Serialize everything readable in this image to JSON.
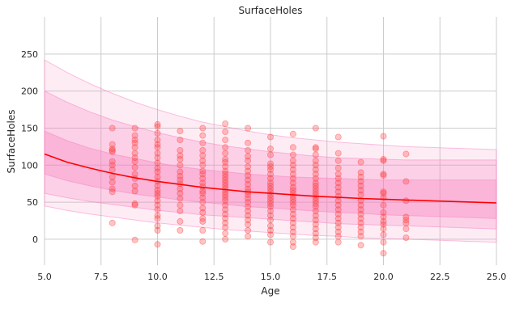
{
  "chart_data": {
    "type": "scatter",
    "title": "SurfaceHoles",
    "xlabel": "Age",
    "ylabel": "SurfaceHoles",
    "xlim": [
      5,
      25
    ],
    "ylim": [
      -35,
      300
    ],
    "x_ticks": [
      "5.0",
      "7.5",
      "10.0",
      "12.5",
      "15.0",
      "17.5",
      "20.0",
      "22.5",
      "25.0"
    ],
    "x_tick_values": [
      5,
      7.5,
      10,
      12.5,
      15,
      17.5,
      20,
      22.5,
      25
    ],
    "y_ticks": [
      "0",
      "50",
      "100",
      "150",
      "200",
      "250"
    ],
    "y_tick_values": [
      0,
      50,
      100,
      150,
      200,
      250
    ],
    "grid": true,
    "colors": {
      "fit_line": "#ff0000",
      "points": "#ff3b3b",
      "band": "#f781bf",
      "grid": "#cccccc",
      "background": "#ffffff"
    },
    "fit_line": {
      "x": [
        5,
        6,
        7,
        8,
        9,
        10,
        11,
        12,
        13,
        14,
        15,
        16,
        17,
        18,
        19,
        20,
        21,
        22,
        23,
        24,
        25
      ],
      "y": [
        115,
        104,
        96,
        89,
        83,
        78,
        74,
        70,
        67,
        64,
        62,
        60,
        58,
        56.5,
        55,
        54,
        53,
        52,
        51,
        50,
        49
      ]
    },
    "bands": [
      {
        "upper": [
          146,
          133,
          123,
          115,
          109,
          103,
          98,
          94,
          91,
          88,
          86,
          84,
          83,
          82,
          81,
          80,
          80,
          80,
          80,
          80,
          80
        ],
        "lower": [
          88,
          79,
          72,
          66,
          61,
          57,
          53,
          50,
          47,
          44,
          42,
          40,
          38,
          36,
          35,
          33,
          32,
          31,
          30,
          29,
          28
        ]
      },
      {
        "upper": [
          200,
          185,
          172,
          161,
          152,
          144,
          137,
          131,
          126,
          122,
          118,
          115,
          112,
          110,
          109,
          108,
          107,
          107,
          107,
          107,
          107
        ],
        "lower": [
          62,
          56,
          51,
          47,
          43,
          39,
          36,
          33,
          31,
          29,
          27,
          25,
          23,
          21,
          20,
          19,
          18,
          17,
          16,
          15,
          14
        ]
      },
      {
        "upper": [
          242,
          225,
          210,
          197,
          185,
          175,
          166,
          158,
          152,
          146,
          141,
          137,
          134,
          131,
          129,
          127,
          125,
          124,
          123,
          122,
          121
        ],
        "lower": [
          45,
          39,
          34,
          30,
          26,
          22,
          19,
          16,
          13,
          11,
          9,
          7,
          5,
          4,
          2,
          1,
          0,
          -1,
          -2,
          -3,
          -4
        ]
      }
    ],
    "points": [
      {
        "x": 8,
        "y": 22
      },
      {
        "x": 8,
        "y": 64
      },
      {
        "x": 8,
        "y": 68
      },
      {
        "x": 8,
        "y": 77
      },
      {
        "x": 8,
        "y": 84
      },
      {
        "x": 8,
        "y": 94
      },
      {
        "x": 8,
        "y": 100
      },
      {
        "x": 8,
        "y": 105
      },
      {
        "x": 8,
        "y": 118
      },
      {
        "x": 8,
        "y": 120
      },
      {
        "x": 8,
        "y": 122
      },
      {
        "x": 8,
        "y": 128
      },
      {
        "x": 8,
        "y": 150
      },
      {
        "x": 9,
        "y": -1
      },
      {
        "x": 9,
        "y": 46
      },
      {
        "x": 9,
        "y": 48
      },
      {
        "x": 9,
        "y": 65
      },
      {
        "x": 9,
        "y": 72
      },
      {
        "x": 9,
        "y": 82
      },
      {
        "x": 9,
        "y": 88
      },
      {
        "x": 9,
        "y": 97
      },
      {
        "x": 9,
        "y": 105
      },
      {
        "x": 9,
        "y": 110
      },
      {
        "x": 9,
        "y": 116
      },
      {
        "x": 9,
        "y": 124
      },
      {
        "x": 9,
        "y": 130
      },
      {
        "x": 9,
        "y": 134
      },
      {
        "x": 9,
        "y": 140
      },
      {
        "x": 9,
        "y": 150
      },
      {
        "x": 10,
        "y": -7
      },
      {
        "x": 10,
        "y": 12
      },
      {
        "x": 10,
        "y": 18
      },
      {
        "x": 10,
        "y": 28
      },
      {
        "x": 10,
        "y": 32
      },
      {
        "x": 10,
        "y": 40
      },
      {
        "x": 10,
        "y": 46
      },
      {
        "x": 10,
        "y": 52
      },
      {
        "x": 10,
        "y": 58
      },
      {
        "x": 10,
        "y": 62
      },
      {
        "x": 10,
        "y": 66
      },
      {
        "x": 10,
        "y": 72
      },
      {
        "x": 10,
        "y": 78
      },
      {
        "x": 10,
        "y": 84
      },
      {
        "x": 10,
        "y": 91
      },
      {
        "x": 10,
        "y": 96
      },
      {
        "x": 10,
        "y": 103
      },
      {
        "x": 10,
        "y": 110
      },
      {
        "x": 10,
        "y": 116
      },
      {
        "x": 10,
        "y": 124
      },
      {
        "x": 10,
        "y": 128
      },
      {
        "x": 10,
        "y": 134
      },
      {
        "x": 10,
        "y": 143
      },
      {
        "x": 10,
        "y": 152
      },
      {
        "x": 10,
        "y": 155
      },
      {
        "x": 11,
        "y": 12
      },
      {
        "x": 11,
        "y": 24
      },
      {
        "x": 11,
        "y": 38
      },
      {
        "x": 11,
        "y": 46
      },
      {
        "x": 11,
        "y": 55
      },
      {
        "x": 11,
        "y": 62
      },
      {
        "x": 11,
        "y": 68
      },
      {
        "x": 11,
        "y": 75
      },
      {
        "x": 11,
        "y": 80
      },
      {
        "x": 11,
        "y": 85
      },
      {
        "x": 11,
        "y": 91
      },
      {
        "x": 11,
        "y": 100
      },
      {
        "x": 11,
        "y": 108
      },
      {
        "x": 11,
        "y": 113
      },
      {
        "x": 11,
        "y": 120
      },
      {
        "x": 11,
        "y": 134
      },
      {
        "x": 11,
        "y": 146
      },
      {
        "x": 12,
        "y": -3
      },
      {
        "x": 12,
        "y": 12
      },
      {
        "x": 12,
        "y": 24
      },
      {
        "x": 12,
        "y": 28
      },
      {
        "x": 12,
        "y": 36
      },
      {
        "x": 12,
        "y": 42
      },
      {
        "x": 12,
        "y": 50
      },
      {
        "x": 12,
        "y": 56
      },
      {
        "x": 12,
        "y": 62
      },
      {
        "x": 12,
        "y": 65
      },
      {
        "x": 12,
        "y": 71
      },
      {
        "x": 12,
        "y": 76
      },
      {
        "x": 12,
        "y": 82
      },
      {
        "x": 12,
        "y": 88
      },
      {
        "x": 12,
        "y": 92
      },
      {
        "x": 12,
        "y": 100
      },
      {
        "x": 12,
        "y": 106
      },
      {
        "x": 12,
        "y": 113
      },
      {
        "x": 12,
        "y": 120
      },
      {
        "x": 12,
        "y": 130
      },
      {
        "x": 12,
        "y": 140
      },
      {
        "x": 12,
        "y": 150
      },
      {
        "x": 13,
        "y": 0
      },
      {
        "x": 13,
        "y": 8
      },
      {
        "x": 13,
        "y": 16
      },
      {
        "x": 13,
        "y": 22
      },
      {
        "x": 13,
        "y": 28
      },
      {
        "x": 13,
        "y": 34
      },
      {
        "x": 13,
        "y": 40
      },
      {
        "x": 13,
        "y": 46
      },
      {
        "x": 13,
        "y": 52
      },
      {
        "x": 13,
        "y": 56
      },
      {
        "x": 13,
        "y": 60
      },
      {
        "x": 13,
        "y": 64
      },
      {
        "x": 13,
        "y": 68
      },
      {
        "x": 13,
        "y": 72
      },
      {
        "x": 13,
        "y": 76
      },
      {
        "x": 13,
        "y": 80
      },
      {
        "x": 13,
        "y": 84
      },
      {
        "x": 13,
        "y": 88
      },
      {
        "x": 13,
        "y": 92
      },
      {
        "x": 13,
        "y": 98
      },
      {
        "x": 13,
        "y": 104
      },
      {
        "x": 13,
        "y": 108
      },
      {
        "x": 13,
        "y": 116
      },
      {
        "x": 13,
        "y": 124
      },
      {
        "x": 13,
        "y": 134
      },
      {
        "x": 13,
        "y": 145
      },
      {
        "x": 13,
        "y": 156
      },
      {
        "x": 14,
        "y": 4
      },
      {
        "x": 14,
        "y": 12
      },
      {
        "x": 14,
        "y": 20
      },
      {
        "x": 14,
        "y": 26
      },
      {
        "x": 14,
        "y": 32
      },
      {
        "x": 14,
        "y": 38
      },
      {
        "x": 14,
        "y": 44
      },
      {
        "x": 14,
        "y": 50
      },
      {
        "x": 14,
        "y": 55
      },
      {
        "x": 14,
        "y": 60
      },
      {
        "x": 14,
        "y": 64
      },
      {
        "x": 14,
        "y": 68
      },
      {
        "x": 14,
        "y": 74
      },
      {
        "x": 14,
        "y": 80
      },
      {
        "x": 14,
        "y": 86
      },
      {
        "x": 14,
        "y": 92
      },
      {
        "x": 14,
        "y": 98
      },
      {
        "x": 14,
        "y": 106
      },
      {
        "x": 14,
        "y": 112
      },
      {
        "x": 14,
        "y": 120
      },
      {
        "x": 14,
        "y": 130
      },
      {
        "x": 14,
        "y": 150
      },
      {
        "x": 15,
        "y": -4
      },
      {
        "x": 15,
        "y": 6
      },
      {
        "x": 15,
        "y": 12
      },
      {
        "x": 15,
        "y": 18
      },
      {
        "x": 15,
        "y": 26
      },
      {
        "x": 15,
        "y": 32
      },
      {
        "x": 15,
        "y": 38
      },
      {
        "x": 15,
        "y": 44
      },
      {
        "x": 15,
        "y": 48
      },
      {
        "x": 15,
        "y": 52
      },
      {
        "x": 15,
        "y": 56
      },
      {
        "x": 15,
        "y": 60
      },
      {
        "x": 15,
        "y": 64
      },
      {
        "x": 15,
        "y": 68
      },
      {
        "x": 15,
        "y": 72
      },
      {
        "x": 15,
        "y": 76
      },
      {
        "x": 15,
        "y": 82
      },
      {
        "x": 15,
        "y": 88
      },
      {
        "x": 15,
        "y": 94
      },
      {
        "x": 15,
        "y": 98
      },
      {
        "x": 15,
        "y": 102
      },
      {
        "x": 15,
        "y": 114
      },
      {
        "x": 15,
        "y": 122
      },
      {
        "x": 15,
        "y": 138
      },
      {
        "x": 16,
        "y": -10
      },
      {
        "x": 16,
        "y": -4
      },
      {
        "x": 16,
        "y": 4
      },
      {
        "x": 16,
        "y": 10
      },
      {
        "x": 16,
        "y": 16
      },
      {
        "x": 16,
        "y": 22
      },
      {
        "x": 16,
        "y": 28
      },
      {
        "x": 16,
        "y": 34
      },
      {
        "x": 16,
        "y": 40
      },
      {
        "x": 16,
        "y": 46
      },
      {
        "x": 16,
        "y": 50
      },
      {
        "x": 16,
        "y": 54
      },
      {
        "x": 16,
        "y": 58
      },
      {
        "x": 16,
        "y": 62
      },
      {
        "x": 16,
        "y": 66
      },
      {
        "x": 16,
        "y": 70
      },
      {
        "x": 16,
        "y": 76
      },
      {
        "x": 16,
        "y": 82
      },
      {
        "x": 16,
        "y": 88
      },
      {
        "x": 16,
        "y": 94
      },
      {
        "x": 16,
        "y": 100
      },
      {
        "x": 16,
        "y": 106
      },
      {
        "x": 16,
        "y": 114
      },
      {
        "x": 16,
        "y": 124
      },
      {
        "x": 16,
        "y": 142
      },
      {
        "x": 17,
        "y": -4
      },
      {
        "x": 17,
        "y": 2
      },
      {
        "x": 17,
        "y": 8
      },
      {
        "x": 17,
        "y": 14
      },
      {
        "x": 17,
        "y": 20
      },
      {
        "x": 17,
        "y": 26
      },
      {
        "x": 17,
        "y": 32
      },
      {
        "x": 17,
        "y": 38
      },
      {
        "x": 17,
        "y": 44
      },
      {
        "x": 17,
        "y": 48
      },
      {
        "x": 17,
        "y": 52
      },
      {
        "x": 17,
        "y": 56
      },
      {
        "x": 17,
        "y": 60
      },
      {
        "x": 17,
        "y": 64
      },
      {
        "x": 17,
        "y": 68
      },
      {
        "x": 17,
        "y": 72
      },
      {
        "x": 17,
        "y": 76
      },
      {
        "x": 17,
        "y": 82
      },
      {
        "x": 17,
        "y": 88
      },
      {
        "x": 17,
        "y": 94
      },
      {
        "x": 17,
        "y": 100
      },
      {
        "x": 17,
        "y": 106
      },
      {
        "x": 17,
        "y": 114
      },
      {
        "x": 17,
        "y": 122
      },
      {
        "x": 17,
        "y": 124
      },
      {
        "x": 17,
        "y": 150
      },
      {
        "x": 18,
        "y": -4
      },
      {
        "x": 18,
        "y": 4
      },
      {
        "x": 18,
        "y": 10
      },
      {
        "x": 18,
        "y": 16
      },
      {
        "x": 18,
        "y": 22
      },
      {
        "x": 18,
        "y": 28
      },
      {
        "x": 18,
        "y": 34
      },
      {
        "x": 18,
        "y": 40
      },
      {
        "x": 18,
        "y": 46
      },
      {
        "x": 18,
        "y": 52
      },
      {
        "x": 18,
        "y": 58
      },
      {
        "x": 18,
        "y": 64
      },
      {
        "x": 18,
        "y": 70
      },
      {
        "x": 18,
        "y": 76
      },
      {
        "x": 18,
        "y": 82
      },
      {
        "x": 18,
        "y": 88
      },
      {
        "x": 18,
        "y": 96
      },
      {
        "x": 18,
        "y": 106
      },
      {
        "x": 18,
        "y": 116
      },
      {
        "x": 18,
        "y": 138
      },
      {
        "x": 19,
        "y": -8
      },
      {
        "x": 19,
        "y": 4
      },
      {
        "x": 19,
        "y": 10
      },
      {
        "x": 19,
        "y": 16
      },
      {
        "x": 19,
        "y": 22
      },
      {
        "x": 19,
        "y": 28
      },
      {
        "x": 19,
        "y": 34
      },
      {
        "x": 19,
        "y": 40
      },
      {
        "x": 19,
        "y": 46
      },
      {
        "x": 19,
        "y": 52
      },
      {
        "x": 19,
        "y": 60
      },
      {
        "x": 19,
        "y": 66
      },
      {
        "x": 19,
        "y": 72
      },
      {
        "x": 19,
        "y": 78
      },
      {
        "x": 19,
        "y": 84
      },
      {
        "x": 19,
        "y": 90
      },
      {
        "x": 19,
        "y": 104
      },
      {
        "x": 20,
        "y": -19
      },
      {
        "x": 20,
        "y": -4
      },
      {
        "x": 20,
        "y": 6
      },
      {
        "x": 20,
        "y": 14
      },
      {
        "x": 20,
        "y": 20
      },
      {
        "x": 20,
        "y": 24
      },
      {
        "x": 20,
        "y": 30
      },
      {
        "x": 20,
        "y": 36
      },
      {
        "x": 20,
        "y": 46
      },
      {
        "x": 20,
        "y": 56
      },
      {
        "x": 20,
        "y": 62
      },
      {
        "x": 20,
        "y": 64
      },
      {
        "x": 20,
        "y": 86
      },
      {
        "x": 20,
        "y": 88
      },
      {
        "x": 20,
        "y": 106
      },
      {
        "x": 20,
        "y": 108
      },
      {
        "x": 20,
        "y": 139
      },
      {
        "x": 21,
        "y": 2
      },
      {
        "x": 21,
        "y": 14
      },
      {
        "x": 21,
        "y": 22
      },
      {
        "x": 21,
        "y": 26
      },
      {
        "x": 21,
        "y": 30
      },
      {
        "x": 21,
        "y": 52
      },
      {
        "x": 21,
        "y": 78
      },
      {
        "x": 21,
        "y": 115
      }
    ]
  }
}
